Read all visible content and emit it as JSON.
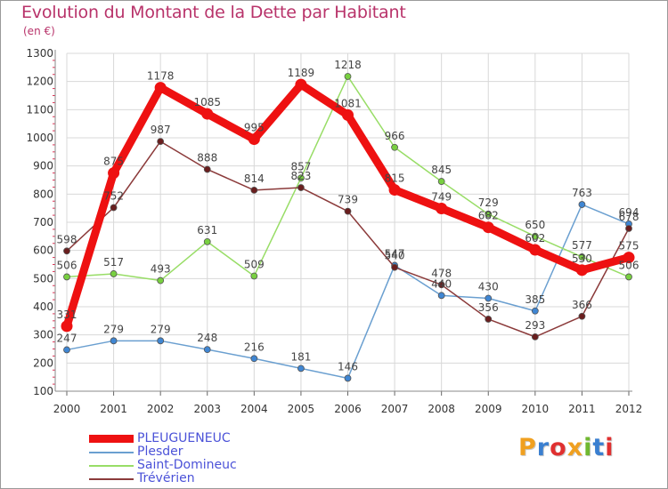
{
  "header": {
    "title": "Evolution du Montant de la Dette par Habitant",
    "subtitle": "(en €)"
  },
  "logo": {
    "text": "Proxiti",
    "colors": [
      "#f0a020",
      "#3a7fd0",
      "#e03030",
      "#f0a020",
      "#70b830",
      "#3a7fd0",
      "#e03030"
    ]
  },
  "chart_data": {
    "type": "line",
    "title": "Evolution du Montant de la Dette par Habitant",
    "subtitle": "(en €)",
    "xlabel": "",
    "ylabel": "",
    "x": [
      "2000",
      "2001",
      "2002",
      "2003",
      "2004",
      "2005",
      "2006",
      "2007",
      "2008",
      "2009",
      "2010",
      "2011",
      "2012"
    ],
    "ylim": [
      100,
      1300
    ],
    "yticks": [
      100,
      200,
      300,
      400,
      500,
      600,
      700,
      800,
      900,
      1000,
      1100,
      1200,
      1300
    ],
    "grid": true,
    "legend_position": "bottom-left",
    "series": [
      {
        "name": "PLEUGUENEUC",
        "values": [
          331,
          875,
          1178,
          1085,
          995,
          1189,
          1081,
          815,
          749,
          682,
          602,
          530,
          575
        ],
        "color": "#ee1111",
        "marker_fill": "#ee1111",
        "labels": [
          "331",
          "875",
          "1178",
          "1085",
          "995",
          "1189",
          "1081",
          "815",
          "749",
          "682",
          "602",
          "530",
          "575"
        ]
      },
      {
        "name": "Plesder",
        "values": [
          247,
          279,
          279,
          248,
          216,
          181,
          146,
          547,
          440,
          430,
          385,
          763,
          694
        ],
        "color": "#6a9fd0",
        "marker_fill": "#3f86d3",
        "labels": [
          "247",
          "279",
          "279",
          "248",
          "216",
          "181",
          "146",
          "547",
          "440",
          "430",
          "385",
          "763",
          "694"
        ]
      },
      {
        "name": "Saint-Domineuc",
        "values": [
          506,
          517,
          493,
          631,
          509,
          857,
          1218,
          966,
          845,
          729,
          650,
          577,
          506
        ],
        "color": "#98dd66",
        "marker_fill": "#78d040",
        "labels": [
          "506",
          "517",
          "493",
          "631",
          "509",
          "857",
          "1218",
          "966",
          "845",
          "729",
          "650",
          "577",
          "506"
        ]
      },
      {
        "name": "Trévérien",
        "values": [
          598,
          752,
          987,
          888,
          814,
          823,
          739,
          540,
          478,
          356,
          293,
          366,
          678
        ],
        "color": "#8b3a3a",
        "marker_fill": "#6a1e1e",
        "labels": [
          "598",
          "752",
          "987",
          "888",
          "814",
          "823",
          "739",
          "540",
          "478",
          "356",
          "293",
          "366",
          "678"
        ]
      }
    ]
  }
}
